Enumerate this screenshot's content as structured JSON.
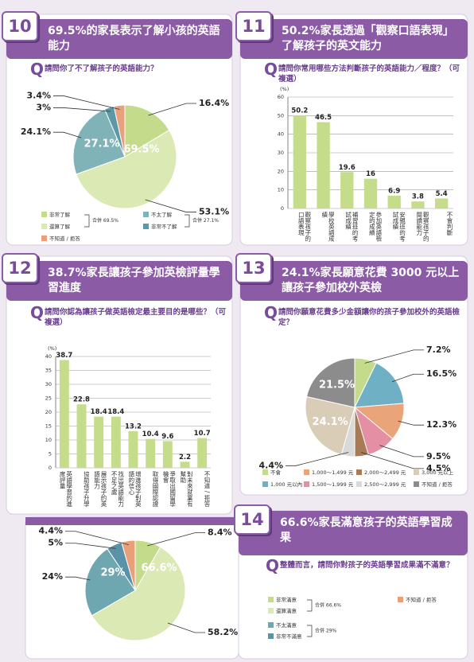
{
  "question_mark": "Q",
  "chart_data": [
    {
      "number": "10",
      "title": "69.5%的家長表示了解小孩的英語能力",
      "question": "請問你了不了解孩子的英語能力？",
      "type": "pie",
      "categories": [
        "非常了解",
        "還算了解",
        "不太了解",
        "非常不了解",
        "不知道 / 拒答"
      ],
      "values": [
        16.4,
        53.1,
        24.1,
        3,
        3.4
      ],
      "value_labels": [
        "16.4%",
        "53.1%",
        "24.1%",
        "3%",
        "3.4%"
      ],
      "colors": [
        "#c3db8a",
        "#dbe9b5",
        "#7fb3b8",
        "#5d98a6",
        "#e7a17c"
      ],
      "annotations": [
        "69.5%",
        "27.1%"
      ],
      "legend_notes": [
        "合併 69.5%",
        "合併 27.1%"
      ]
    },
    {
      "number": "11",
      "title": "50.2%家長透過「觀察口語表現」了解孩子的英文能力",
      "question": "請問你常用哪些方法判斷孩子的英語能力／程度？（可複選）",
      "type": "bar",
      "categories": [
        "觀察孩子的口語表現",
        "學校英語成績",
        "補習班的考試成績",
        "參加英語檢定的成績",
        "安親班的考試成績",
        "觀察孩子的閱讀能力",
        "不會判斷"
      ],
      "values": [
        50.2,
        46.5,
        19.6,
        16,
        6.9,
        3.8,
        5.4
      ],
      "color": "#c5dc8a",
      "ylabel": "(%)",
      "ylim": [
        0,
        60
      ],
      "yticks": [
        0,
        10,
        20,
        30,
        40,
        50,
        60
      ],
      "grid": true
    },
    {
      "number": "12",
      "title": "38.7%家長讓孩子參加英檢評量學習進度",
      "question": "請問你認為讓孩子做英語檢定最主要目的是哪些？（可複選）",
      "type": "bar",
      "categories": [
        "英語學習的進度評量",
        "協助孩子升學",
        "展示孩子的英語能力",
        "找出英語能力不足之處",
        "增進孩子對英語的信心",
        "取得國際認證",
        "爭取出國留學機會",
        "對未來就業有幫助",
        "不知道 / 拒答"
      ],
      "values": [
        38.7,
        22.8,
        18.4,
        18.4,
        13.2,
        10.4,
        9.6,
        2.2,
        10.7
      ],
      "color": "#c5dc8a",
      "ylabel": "(%)",
      "ylim": [
        0,
        40
      ],
      "yticks": [
        0,
        5,
        10,
        15,
        20,
        25,
        30,
        35,
        40
      ],
      "grid": true
    },
    {
      "number": "13",
      "title": "24.1%家長願意花費 3000 元以上讓孩子參加校外英檢",
      "question": "請問你願意花費多少金額讓你的孩子參加校外的英語檢定？",
      "type": "pie",
      "categories": [
        "不會",
        "1,000 元以內",
        "1,000～1,499 元",
        "1,500～1,999 元",
        "2,000～2,499 元",
        "2,500～2,999 元",
        "3,000 元以上",
        "不知道 / 拒答"
      ],
      "values": [
        7.2,
        16.5,
        12.3,
        9.5,
        4.5,
        4.4,
        24.1,
        21.5
      ],
      "value_labels": [
        "7.2%",
        "16.5%",
        "12.3%",
        "9.5%",
        "4.5%",
        "4.4%",
        "24.1%",
        "21.5%"
      ],
      "colors": [
        "#c3db8a",
        "#6fb0c4",
        "#e9a47a",
        "#e48fa4",
        "#a97b55",
        "#d9d9d9",
        "#d9cdb8",
        "#8c8c8c"
      ]
    },
    {
      "number": "14",
      "title": "66.6%家長滿意孩子的英語學習成果",
      "question": "整體而言，請問你對孩子的英語學習成果滿不滿意？",
      "type": "pie",
      "categories": [
        "非常滿意",
        "還算滿意",
        "不太滿意",
        "非常不滿意",
        "不知道 / 拒答"
      ],
      "values": [
        8.4,
        58.2,
        24,
        5,
        4.4
      ],
      "value_labels": [
        "8.4%",
        "58.2%",
        "24%",
        "5%",
        "4.4%"
      ],
      "colors": [
        "#c3db8a",
        "#dbe9b5",
        "#6ea7b0",
        "#5a93a8",
        "#e9a07a"
      ],
      "annotations": [
        "66.6%",
        "29%"
      ],
      "legend_notes": [
        "合併 66.6%",
        "合併 29%"
      ]
    }
  ]
}
